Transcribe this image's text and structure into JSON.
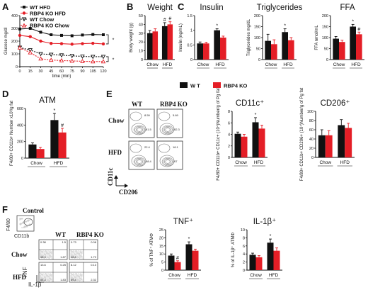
{
  "panel_labels": {
    "A": "A",
    "B": "B",
    "C": "C",
    "D": "D",
    "E": "E",
    "F": "F"
  },
  "colors": {
    "wt": "#111111",
    "ko": "#e41e26",
    "grid": "#222222"
  },
  "main_legend": {
    "wt": "W T",
    "ko": "RBP4 KO"
  },
  "groups": [
    "Chow",
    "HFD"
  ],
  "chart_data": [
    {
      "id": "A",
      "type": "line",
      "title": "",
      "xlabel": "time (min)",
      "ylabel": "Glucose mg/dl",
      "x": [
        0,
        15,
        30,
        45,
        60,
        75,
        90,
        105,
        120
      ],
      "xlim": [
        0,
        120
      ],
      "ylim": [
        0,
        400
      ],
      "y_ticks": [
        0,
        100,
        200,
        300,
        400
      ],
      "x_ticks": [
        0,
        15,
        30,
        45,
        60,
        75,
        90,
        105,
        120
      ],
      "series": [
        {
          "name": "WT HFD",
          "values": [
            295,
            300,
            270,
            250,
            245,
            242,
            248,
            252,
            250
          ],
          "marker": "filled-square",
          "color": "#111111",
          "dash": false
        },
        {
          "name": "RBP4 KO HFD",
          "values": [
            245,
            235,
            200,
            182,
            180,
            176,
            180,
            183,
            178
          ],
          "marker": "filled-circle",
          "color": "#e41e26",
          "dash": false
        },
        {
          "name": "WT Chow",
          "values": [
            150,
            130,
            100,
            95,
            90,
            85,
            80,
            78,
            78
          ],
          "marker": "open-triangle-down",
          "color": "#111111",
          "dash": true
        },
        {
          "name": "RBP4 KO Chow",
          "values": [
            148,
            110,
            62,
            52,
            48,
            45,
            42,
            40,
            40
          ],
          "marker": "open-triangle-up",
          "color": "#e41e26",
          "dash": true
        }
      ],
      "annotations": [
        "*",
        "*"
      ]
    },
    {
      "id": "B",
      "type": "bar",
      "title": "Weight",
      "ylabel": "Body weight (g)",
      "ylim": [
        0,
        50
      ],
      "y_ticks": [
        0,
        10,
        20,
        30,
        40,
        50
      ],
      "categories": [
        "Chow",
        "HFD"
      ],
      "series": [
        {
          "name": "W T",
          "values": [
            30,
            38
          ],
          "errors": [
            3,
            4
          ]
        },
        {
          "name": "RBP4 KO",
          "values": [
            32,
            40
          ],
          "errors": [
            3,
            3
          ]
        }
      ],
      "sig": [
        {
          "cat": 1,
          "series": 0,
          "mark": "#"
        },
        {
          "cat": 1,
          "series": 1,
          "mark": "#"
        }
      ]
    },
    {
      "id": "C1",
      "type": "bar",
      "title": "Insulin",
      "ylabel": "Insulin (ng/mL)",
      "ylim": [
        0,
        1.5
      ],
      "y_ticks": [
        0.0,
        0.5,
        1.0,
        1.5
      ],
      "categories": [
        "Chow",
        "HFD"
      ],
      "series": [
        {
          "name": "W T",
          "values": [
            0.55,
            1.0
          ],
          "errors": [
            0.05,
            0.05
          ]
        },
        {
          "name": "RBP4 KO",
          "values": [
            0.55,
            0.75
          ],
          "errors": [
            0.04,
            0.05
          ]
        }
      ],
      "sig": [
        {
          "cat": 1,
          "series": 0,
          "mark": "*"
        }
      ]
    },
    {
      "id": "C2",
      "type": "bar",
      "title": "Triglycerides",
      "ylabel": "Triglycerides mg/dL",
      "ylim": [
        0,
        200
      ],
      "y_ticks": [
        0,
        50,
        100,
        150,
        200
      ],
      "categories": [
        "Chow",
        "HFD"
      ],
      "series": [
        {
          "name": "W T",
          "values": [
            85,
            125
          ],
          "errors": [
            30,
            15
          ]
        },
        {
          "name": "RBP4 KO",
          "values": [
            70,
            88
          ],
          "errors": [
            20,
            12
          ]
        }
      ],
      "sig": [
        {
          "cat": 1,
          "series": 0,
          "mark": "*"
        }
      ]
    },
    {
      "id": "C3",
      "type": "bar",
      "title": "FFA",
      "ylabel": "FFA nmol/mL",
      "ylim": [
        0,
        200
      ],
      "y_ticks": [
        0,
        50,
        100,
        150,
        200
      ],
      "categories": [
        "Chow",
        "HFD"
      ],
      "series": [
        {
          "name": "W T",
          "values": [
            95,
            150
          ],
          "errors": [
            10,
            10
          ]
        },
        {
          "name": "RBP4 KO",
          "values": [
            80,
            115
          ],
          "errors": [
            8,
            10
          ]
        }
      ],
      "sig": [
        {
          "cat": 1,
          "series": 0,
          "mark": "*"
        },
        {
          "cat": 1,
          "series": 1,
          "mark": "#"
        }
      ]
    },
    {
      "id": "D",
      "type": "bar",
      "title": "ATM",
      "ylabel": "F4/80+ CD11b+ Number x10³/g fat",
      "ylim": [
        0,
        600
      ],
      "y_ticks": [
        0,
        200,
        400,
        600
      ],
      "categories": [
        "Chow",
        "HFD"
      ],
      "series": [
        {
          "name": "W T",
          "values": [
            165,
            460
          ],
          "errors": [
            20,
            80
          ]
        },
        {
          "name": "RBP4 KO",
          "values": [
            110,
            310
          ],
          "errors": [
            20,
            50
          ]
        }
      ],
      "sig": [
        {
          "cat": 1,
          "series": 0,
          "mark": "*"
        },
        {
          "cat": 1,
          "series": 1,
          "mark": "#"
        }
      ]
    },
    {
      "id": "E1",
      "type": "bar",
      "title": "CD11c⁺",
      "ylabel": "F4/80+ CD11b+ CD11c+ (10⁴)Number/g of Pg fat",
      "ylim": [
        0,
        8
      ],
      "y_ticks": [
        0,
        2,
        4,
        6,
        8
      ],
      "categories": [
        "Chow",
        "HFD"
      ],
      "series": [
        {
          "name": "W T",
          "values": [
            4.1,
            6.1
          ],
          "errors": [
            0.3,
            0.8
          ]
        },
        {
          "name": "RBP4 KO",
          "values": [
            3.6,
            5.0
          ],
          "errors": [
            0.4,
            0.6
          ]
        }
      ],
      "sig": [
        {
          "cat": 1,
          "series": 0,
          "mark": "*"
        }
      ]
    },
    {
      "id": "E2",
      "type": "bar",
      "title": "CD206⁺",
      "ylabel": "F4/80+ CD11b+ CD206+ (10⁴)Number/g of Pg fat",
      "ylim": [
        0,
        100
      ],
      "y_ticks": [
        0,
        20,
        40,
        60,
        80,
        100
      ],
      "categories": [
        "Chow",
        "HFD"
      ],
      "series": [
        {
          "name": "W T",
          "values": [
            48,
            70
          ],
          "errors": [
            12,
            12
          ]
        },
        {
          "name": "RBP4 KO",
          "values": [
            48,
            64
          ],
          "errors": [
            10,
            10
          ]
        }
      ],
      "sig": []
    },
    {
      "id": "F1",
      "type": "bar",
      "title": "TNF⁺",
      "ylabel": "% of TNF⁺ ATMΦ",
      "ylim": [
        0,
        25
      ],
      "y_ticks": [
        0,
        5,
        10,
        15,
        20,
        25
      ],
      "categories": [
        "Chow",
        "HFD"
      ],
      "series": [
        {
          "name": "W T",
          "values": [
            9,
            16
          ],
          "errors": [
            1,
            1.5
          ]
        },
        {
          "name": "RBP4 KO",
          "values": [
            5,
            12
          ],
          "errors": [
            0.8,
            1
          ]
        }
      ],
      "sig": [
        {
          "cat": 0,
          "series": 1,
          "mark": "#"
        },
        {
          "cat": 1,
          "series": 0,
          "mark": "*"
        }
      ]
    },
    {
      "id": "F2",
      "type": "bar",
      "title": "IL-1β⁺",
      "ylabel": "% of IL-1β⁺ ATMΦ",
      "ylim": [
        0,
        10
      ],
      "y_ticks": [
        0,
        2,
        4,
        6,
        8,
        10
      ],
      "categories": [
        "Chow",
        "HFD"
      ],
      "series": [
        {
          "name": "W T",
          "values": [
            3.8,
            6.8
          ],
          "errors": [
            0.4,
            0.9
          ]
        },
        {
          "name": "RBP4 KO",
          "values": [
            3.2,
            4.8
          ],
          "errors": [
            0.4,
            0.7
          ]
        }
      ],
      "sig": [
        {
          "cat": 1,
          "series": 0,
          "mark": "*"
        }
      ]
    }
  ],
  "flow_E": {
    "col_labels": [
      "WT",
      "RBP4 KO"
    ],
    "row_labels": [
      "Chow",
      "HFD"
    ],
    "axis_x": "CD206",
    "axis_y": "CD11c",
    "quadrant_values": [
      [
        "8.59",
        "81.5"
      ],
      [
        "5.69",
        "82.3"
      ],
      [
        "22.4",
        "58.4"
      ],
      [
        "18.1",
        "67"
      ]
    ]
  },
  "flow_F": {
    "control_label": "Control",
    "control_axis_x": "CD11b",
    "control_axis_y": "F4/80",
    "col_labels": [
      "WT",
      "RBP4 KO"
    ],
    "row_labels": [
      "Chow",
      "HFD"
    ],
    "axis_x": "IL-1β",
    "axis_y": "TNF",
    "quadrants": [
      [
        "0.38",
        "1.5",
        "96.3",
        "1.87"
      ],
      [
        "0.73",
        "0.08",
        "96.8",
        "1.72"
      ],
      [
        "13.6",
        "0.25",
        "84.3",
        "1.83"
      ],
      [
        "8.12",
        "0.13",
        "89.4",
        "2.32"
      ]
    ]
  }
}
